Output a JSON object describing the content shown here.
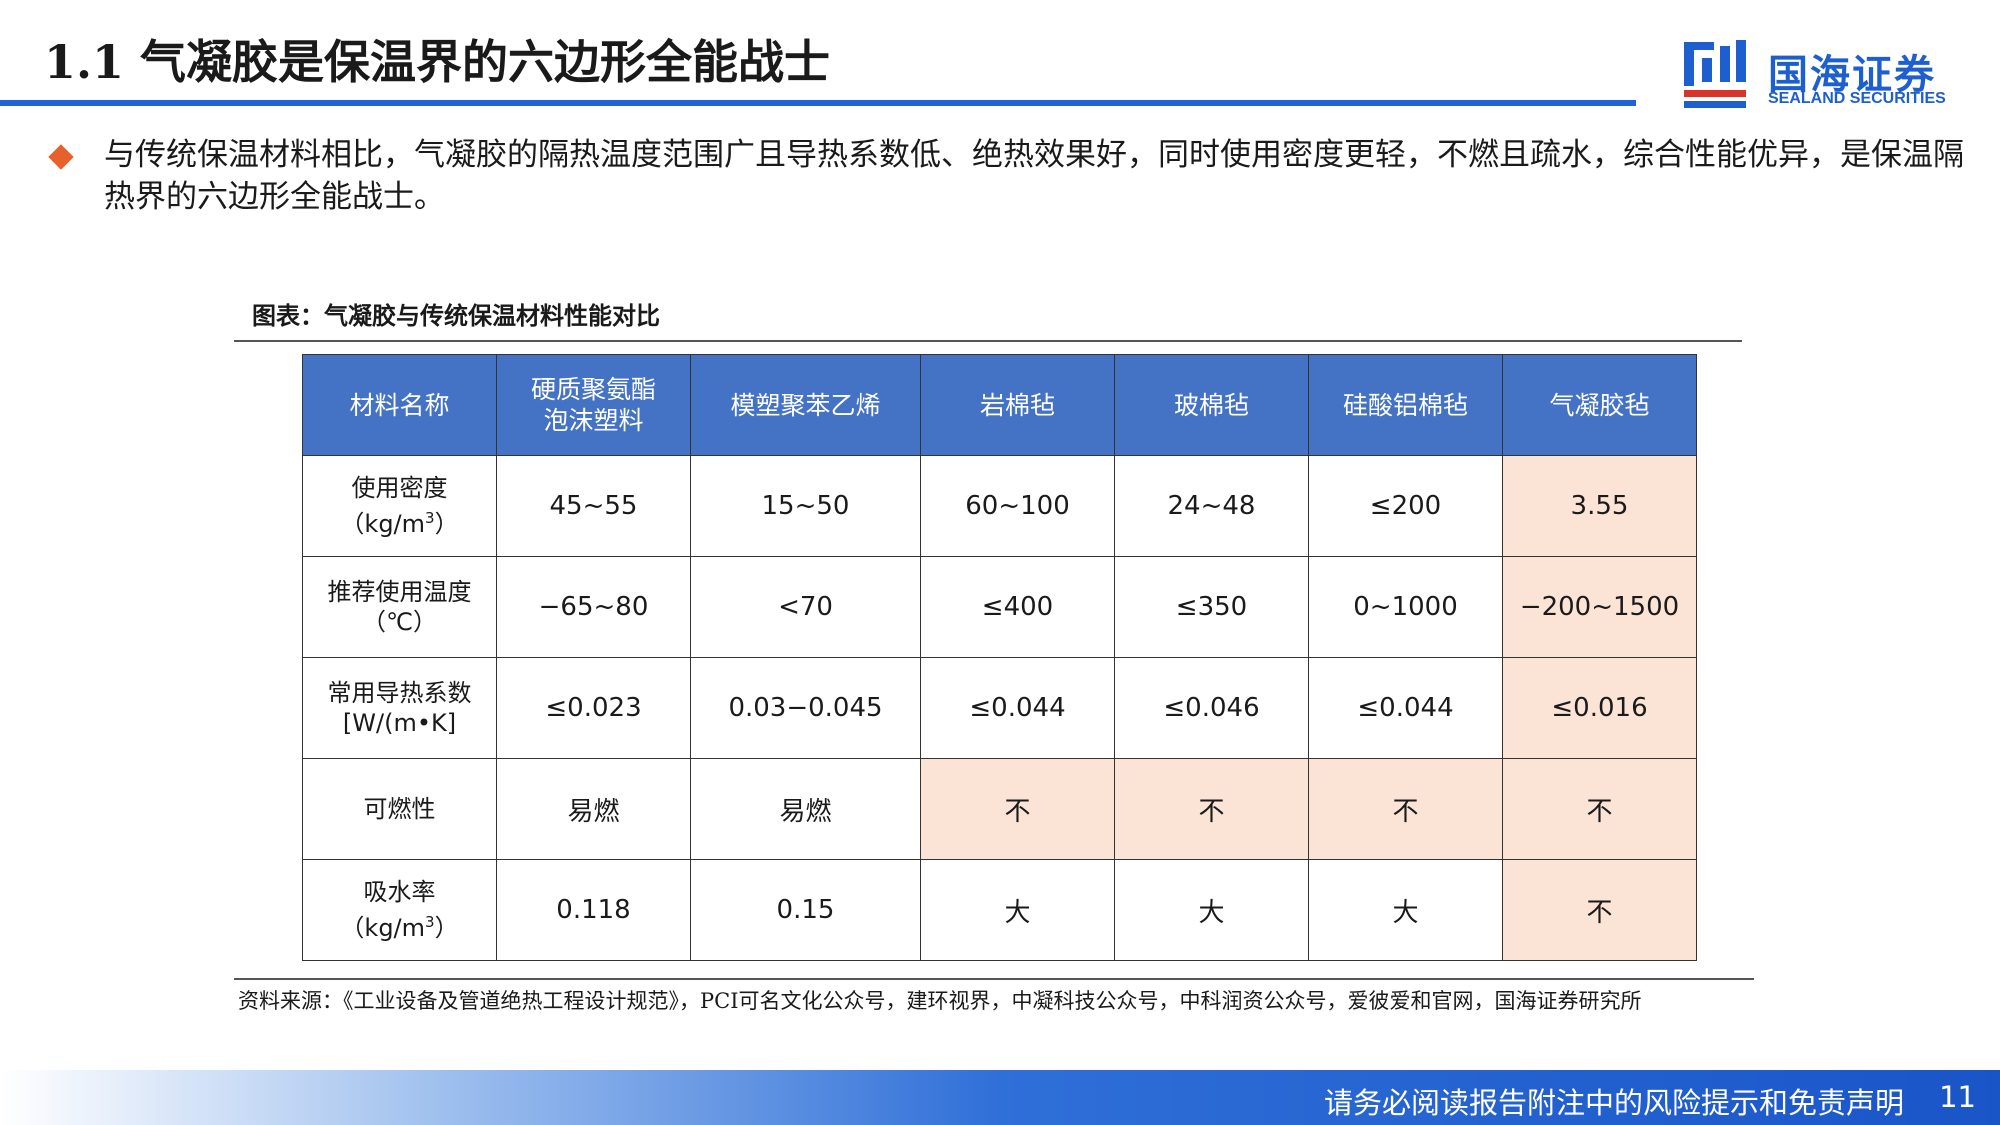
{
  "header": {
    "title_num": "1.1",
    "title_text": "气凝胶是保温界的六边形全能战士",
    "logo_cn": "国海证券",
    "logo_en": "SEALAND SECURITIES",
    "accent_color": "#1f63d6"
  },
  "bullet": {
    "text": "与传统保温材料相比，气凝胶的隔热温度范围广且导热系数低、绝热效果好，同时使用密度更轻，不燃且疏水，综合性能优异，是保温隔热界的六边形全能战士。",
    "icon": "diamond-bullet-icon",
    "color": "#e8612c"
  },
  "caption": "图表：气凝胶与传统保温材料性能对比",
  "table": {
    "header_color": "#4472c4",
    "highlight_color": "#fbe3d6",
    "columns": [
      "材料名称",
      "硬质聚氨酯泡沫塑料",
      "模塑聚苯乙烯",
      "岩棉毡",
      "玻棉毡",
      "硅酸铝棉毡",
      "气凝胶毡"
    ],
    "rows": [
      {
        "label_main": "使用密度",
        "label_unit_pre": "（kg/m",
        "label_sup": "3",
        "label_unit_post": "）",
        "cells": [
          "45~55",
          "15~50",
          "60~100",
          "24~48",
          "≤200",
          "3.55"
        ]
      },
      {
        "label_main": "推荐使用温度",
        "label_unit_pre": "（℃）",
        "label_sup": "",
        "label_unit_post": "",
        "cells": [
          "−65~80",
          "<70",
          "≤400",
          "≤350",
          "0~1000",
          "−200~1500"
        ]
      },
      {
        "label_main": "常用导热系数",
        "label_unit_pre": "[W/(m•K]",
        "label_sup": "",
        "label_unit_post": "",
        "cells": [
          "≤0.023",
          "0.03−0.045",
          "≤0.044",
          "≤0.046",
          "≤0.044",
          "≤0.016"
        ]
      },
      {
        "label_main": "可燃性",
        "label_unit_pre": "",
        "label_sup": "",
        "label_unit_post": "",
        "cells": [
          "易燃",
          "易燃",
          "不",
          "不",
          "不",
          "不"
        ]
      },
      {
        "label_main": "吸水率",
        "label_unit_pre": "（kg/m",
        "label_sup": "3",
        "label_unit_post": "）",
        "cells": [
          "0.118",
          "0.15",
          "大",
          "大",
          "大",
          "不"
        ]
      }
    ]
  },
  "source": "资料来源：《工业设备及管道绝热工程设计规范》，PCI可名文化公众号，建环视界，中凝科技公众号，中科润资公众号，爱彼爱和官网，国海证券研究所",
  "footer": {
    "disclaimer": "请务必阅读报告附注中的风险提示和免责声明",
    "page": "11"
  }
}
